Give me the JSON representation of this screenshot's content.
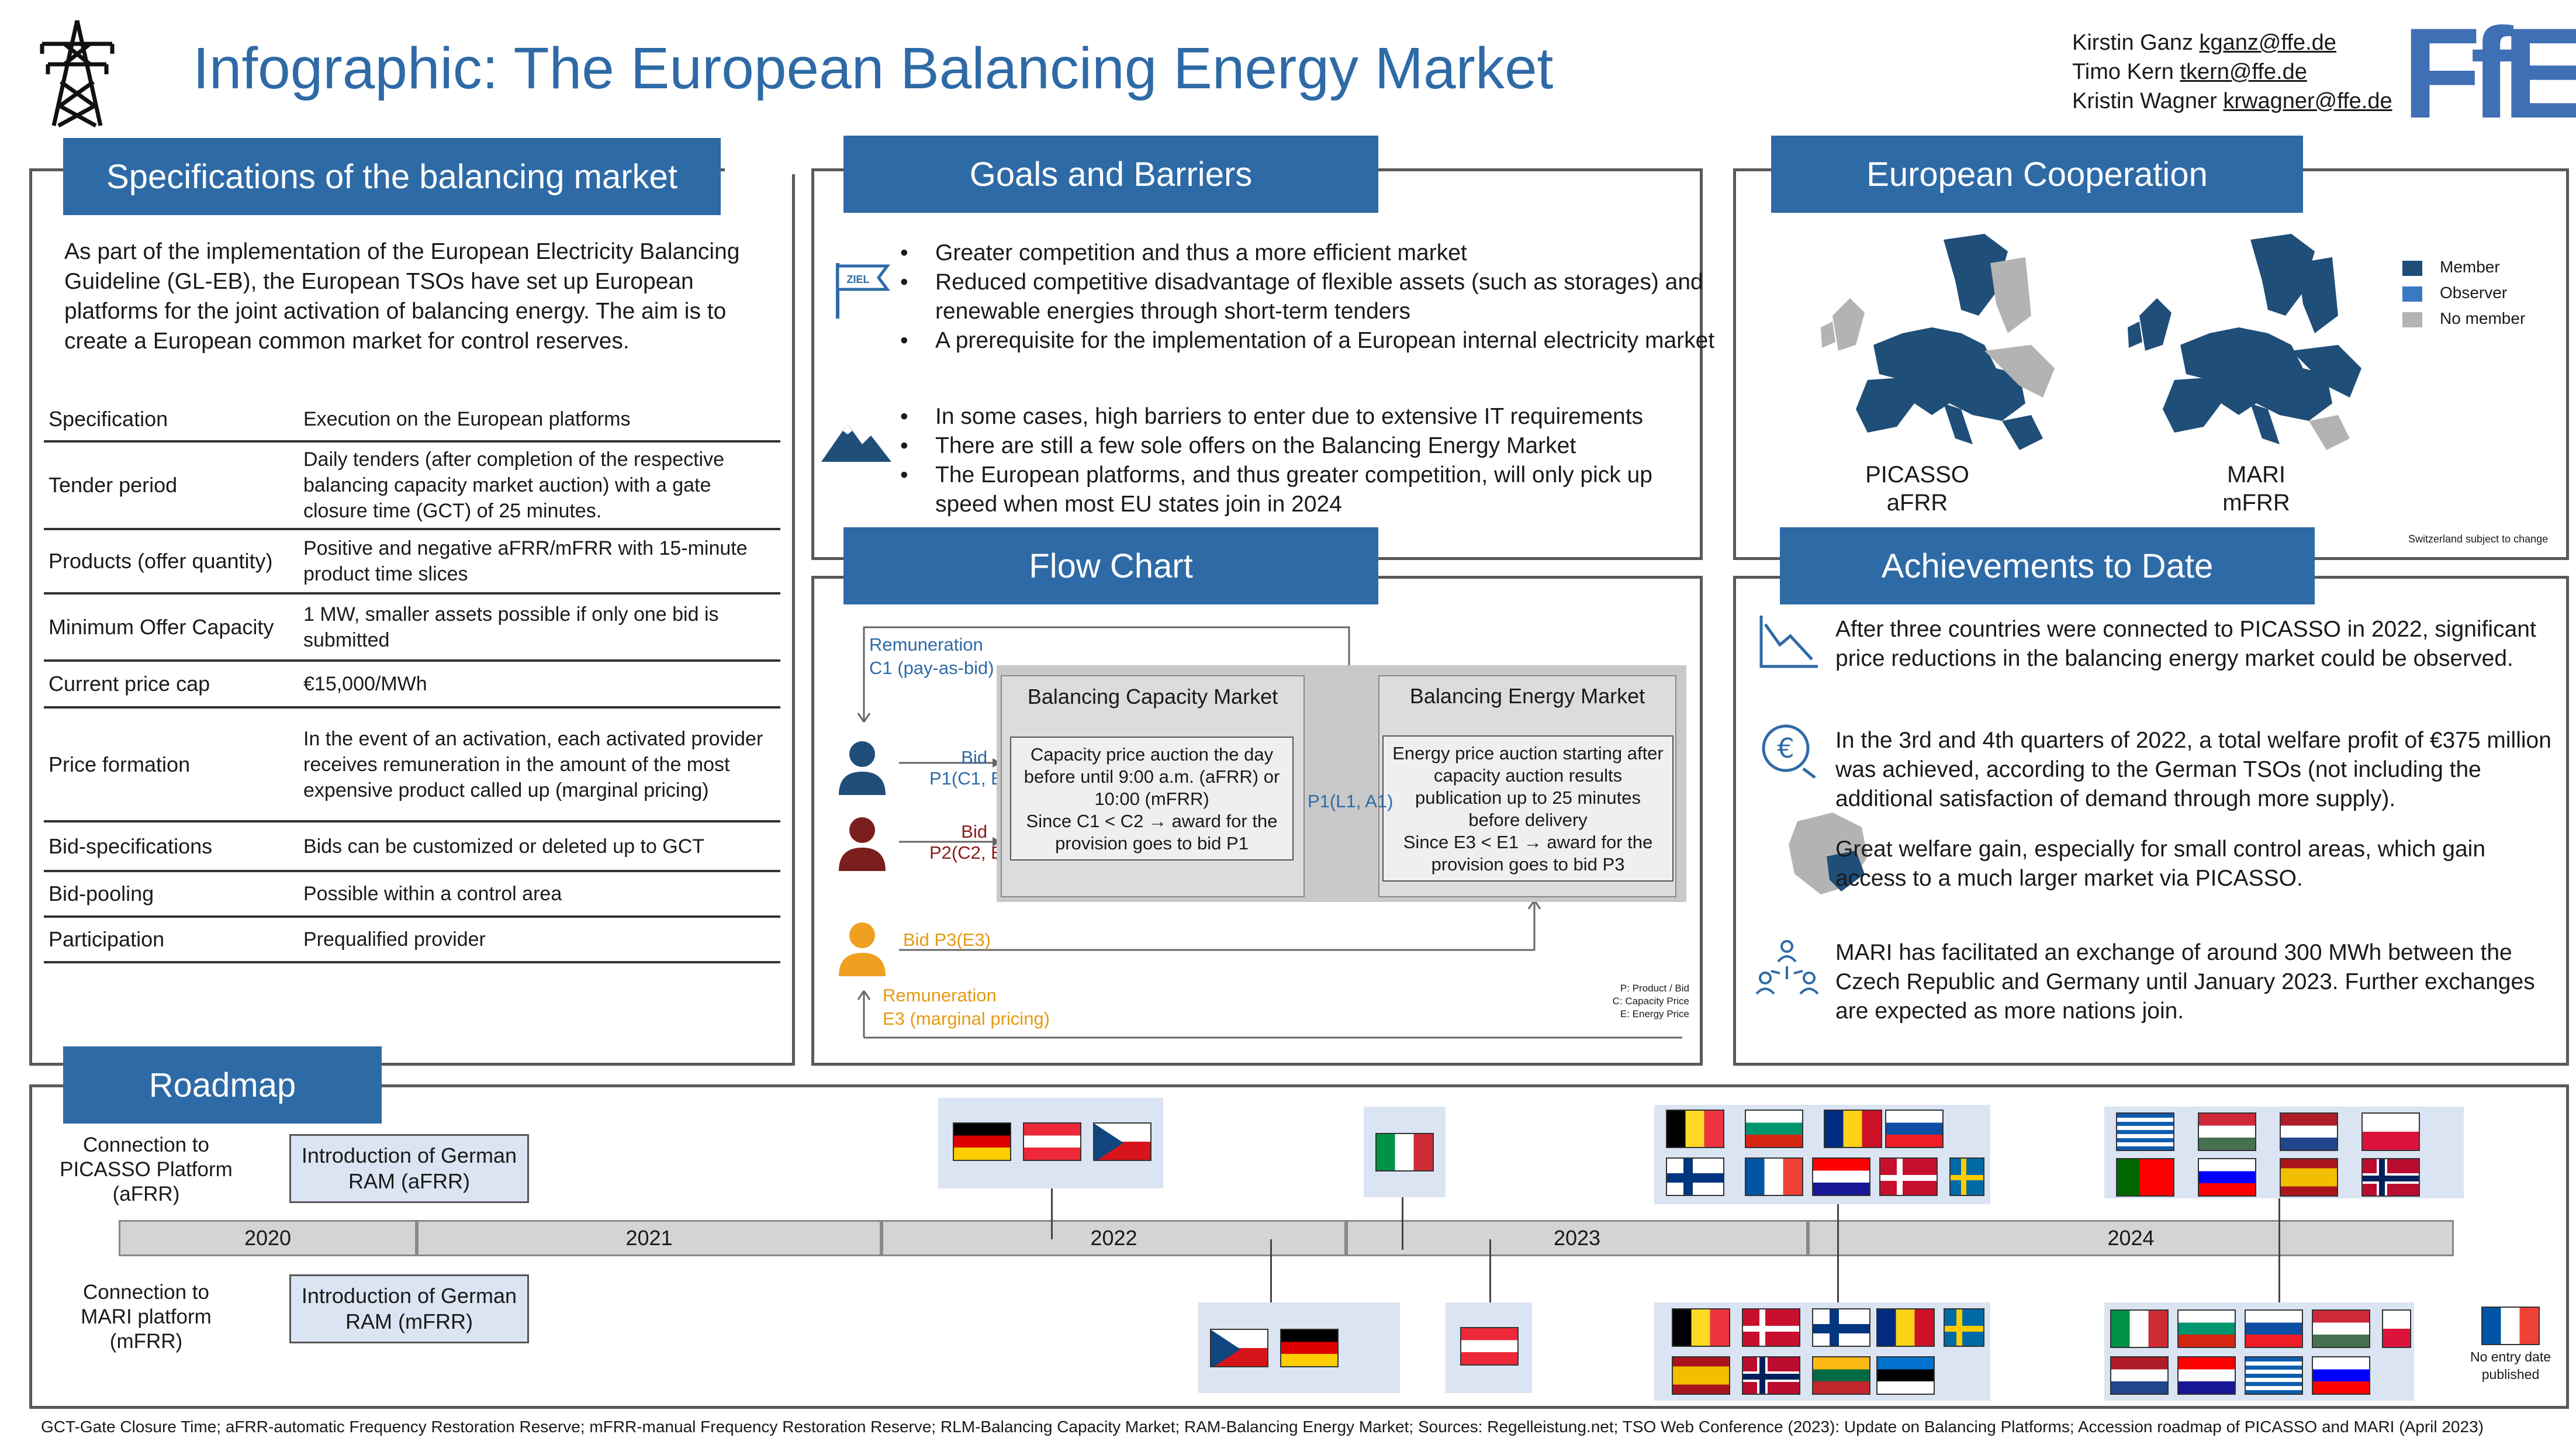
{
  "header": {
    "title": "Infographic: The European Balancing Energy Market",
    "authors": [
      {
        "name": "Kirstin Ganz",
        "email": "kganz@ffe.de"
      },
      {
        "name": "Timo Kern",
        "email": "tkern@ffe.de"
      },
      {
        "name": "Kristin Wagner",
        "email": "krwagner@ffe.de"
      }
    ],
    "logo": "FfE"
  },
  "spec": {
    "heading": "Specifications of the balancing market",
    "intro": "As part of the implementation of the European Electricity Balancing Guideline (GL-EB), the European TSOs have set up European platforms for the joint activation of balancing energy. The aim is to create a European common market for control reserves.",
    "col1": "Specification",
    "col2": "Execution on the European platforms",
    "rows": [
      {
        "k": "Tender period",
        "v": "Daily tenders (after completion of the respective balancing capacity market auction) with a gate closure time (GCT) of 25 minutes."
      },
      {
        "k": "Products (offer quantity)",
        "v": "Positive and negative aFRR/mFRR with 15-minute product time slices"
      },
      {
        "k": "Minimum Offer Capacity",
        "v": "1 MW, smaller assets possible if only one bid is submitted"
      },
      {
        "k": "Current price cap",
        "v": "€15,000/MWh"
      },
      {
        "k": "Price formation",
        "v": "In the event of an activation, each activated provider receives remuneration in the amount of the most expensive product called up (marginal pricing)"
      },
      {
        "k": "Bid-specifications",
        "v": "Bids can be customized or deleted up to GCT"
      },
      {
        "k": "Bid-pooling",
        "v": "Possible within a control area"
      },
      {
        "k": "Participation",
        "v": "Prequalified provider"
      }
    ]
  },
  "goals": {
    "heading": "Goals and Barriers",
    "flag_text": "ZIEL",
    "goals": [
      "Greater competition and thus a more efficient market",
      "Reduced competitive disadvantage of flexible assets (such as storages) and renewable energies through short-term tenders",
      "A prerequisite for the implementation of a European internal electricity market"
    ],
    "barriers": [
      "In some cases, high barriers to enter due to extensive IT requirements",
      "There are still a few sole offers on the Balancing Energy Market",
      "The European platforms, and thus greater competition, will only pick up speed when most EU states join in 2024"
    ]
  },
  "coop": {
    "heading": "European Cooperation",
    "maps": [
      {
        "name": "PICASSO",
        "sub": "aFRR"
      },
      {
        "name": "MARI",
        "sub": "mFRR"
      }
    ],
    "legend": [
      {
        "label": "Member",
        "color": "#1f4e79"
      },
      {
        "label": "Observer",
        "color": "#3b78c2"
      },
      {
        "label": "No member",
        "color": "#b3b3b3"
      }
    ],
    "note": "Switzerland subject to change"
  },
  "flow": {
    "heading": "Flow Chart",
    "remuneration_top": "Remuneration",
    "remuneration_top2": "C1 (pay-as-bid)",
    "bid1": "Bid",
    "bid1b": "P1(C1, E1)",
    "bid2": "Bid",
    "bid2b": "P2(C2, E2)",
    "bid3": "Bid P3(E3)",
    "remuneration_bottom": "Remuneration",
    "remuneration_bottom2": "E3 (marginal pricing)",
    "cap_market": "Balancing Capacity Market",
    "cap_text": "Capacity price auction the day before until 9:00 a.m. (aFRR) or 10:00 (mFRR)",
    "cap_since": "Since C1 < C2 → award for the provision goes to bid P1",
    "mid_label": "P1(L1, A1)",
    "energy_market": "Balancing Energy Market",
    "energy_text": "Energy price auction starting after capacity auction results publication up to 25 minutes before delivery",
    "energy_since": "Since E3 < E1 → award for the provision goes to bid P3",
    "legend": [
      "P: Product / Bid",
      "C: Capacity Price",
      "E: Energy Price"
    ]
  },
  "ach": {
    "heading": "Achievements to Date",
    "items": [
      "After three countries were connected to PICASSO in 2022, significant price reductions in the balancing energy market could be observed.",
      "In the 3rd and 4th quarters of 2022, a total welfare profit of €375 million was achieved, according to the German TSOs (not including the additional satisfaction of demand through more supply).",
      "Great welfare gain, especially for small control areas, which gain access to a much larger market via PICASSO.",
      "MARI has facilitated an exchange of around 300 MWh between the Czech Republic and Germany until January 2023. Further exchanges are expected as more nations join."
    ]
  },
  "roadmap": {
    "heading": "Roadmap",
    "row1": "Connection to PICASSO Platform (aFRR)",
    "row2": "Connection to MARI platform (mFRR)",
    "ram1": "Introduction of German RAM (aFRR)",
    "ram2": "Introduction of German RAM (mFRR)",
    "years": [
      "2020",
      "2021",
      "2022",
      "2023",
      "2024"
    ],
    "no_entry": "No entry date published"
  },
  "footer": "GCT-Gate Closure Time; aFRR-automatic Frequency Restoration Reserve; mFRR-manual Frequency Restoration Reserve; RLM-Balancing Capacity Market; RAM-Balancing Energy Market; Sources: Regelleistung.net; TSO Web Conference (2023): Update on Balancing Platforms; Accession roadmap of PICASSO and MARI (April 2023)"
}
